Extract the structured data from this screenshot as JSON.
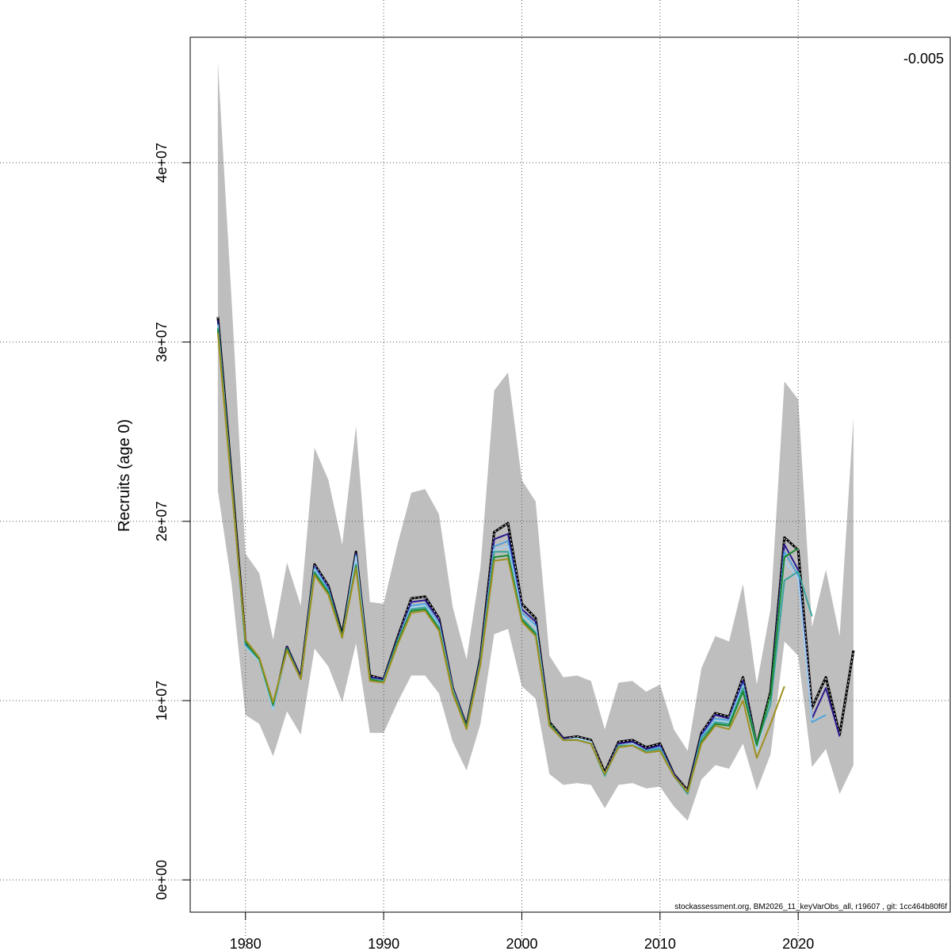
{
  "chart_data": {
    "type": "line",
    "title": "",
    "ylabel": "Recruits (age 0)",
    "xlabel": "",
    "xlim": [
      1976,
      2031
    ],
    "ylim": [
      -1800000,
      47000000
    ],
    "x_ticks": [
      1980,
      1990,
      2000,
      2010,
      2020
    ],
    "x_tick_labels": [
      "1980",
      "1990",
      "2000",
      "2010",
      "2020"
    ],
    "y_ticks": [
      0,
      10000000,
      20000000,
      30000000,
      40000000
    ],
    "y_tick_labels": [
      "0e+00",
      "1e+07",
      "2e+07",
      "3e+07",
      "4e+07"
    ],
    "grid": true,
    "annotation": "-0.005",
    "footer": "stockassessment.org, BM2026_11_keyVarObs_all, r19607 , git: 1cc464b80f6f",
    "band": {
      "color": "#bebebe",
      "x": [
        1978,
        1979,
        1980,
        1981,
        1982,
        1983,
        1984,
        1985,
        1986,
        1987,
        1988,
        1989,
        1990,
        1991,
        1992,
        1993,
        1994,
        1995,
        1996,
        1997,
        1998,
        1999,
        2000,
        2001,
        2002,
        2003,
        2004,
        2005,
        2006,
        2007,
        2008,
        2009,
        2010,
        2011,
        2012,
        2013,
        2014,
        2015,
        2016,
        2017,
        2018,
        2019,
        2020,
        2021,
        2022,
        2023,
        2024
      ],
      "upper": [
        45600000,
        32300000,
        18200000,
        17100000,
        13400000,
        17700000,
        15300000,
        24100000,
        22300000,
        18700000,
        25300000,
        15500000,
        15400000,
        18700000,
        21600000,
        21800000,
        20400000,
        15200000,
        12300000,
        17400000,
        27300000,
        28300000,
        22300000,
        21100000,
        12500000,
        11300000,
        11400000,
        11100000,
        8400000,
        11000000,
        11100000,
        10500000,
        10900000,
        8400000,
        7200000,
        11800000,
        13600000,
        13300000,
        16500000,
        10900000,
        15100000,
        27800000,
        26800000,
        14100000,
        17300000,
        13600000,
        25800000
      ],
      "lower": [
        21700000,
        16500000,
        9200000,
        8700000,
        6900000,
        9400000,
        8100000,
        12900000,
        11900000,
        9900000,
        13200000,
        8200000,
        8200000,
        9900000,
        11400000,
        11400000,
        10400000,
        7700000,
        6100000,
        8700000,
        13700000,
        14000000,
        10800000,
        10100000,
        5900000,
        5300000,
        5400000,
        5300000,
        4000000,
        5300000,
        5400000,
        5100000,
        5200000,
        4100000,
        3300000,
        5600000,
        6400000,
        6200000,
        7600000,
        5000000,
        7000000,
        13300000,
        12500000,
        6300000,
        7300000,
        4800000,
        6400000
      ]
    },
    "series": [
      {
        "color": "#000000",
        "dashed": true,
        "x": [
          1978,
          1979,
          1980,
          1981,
          1982,
          1983,
          1984,
          1985,
          1986,
          1987,
          1988,
          1989,
          1990,
          1991,
          1992,
          1993,
          1994,
          1995,
          1996,
          1997,
          1998,
          1999,
          2000,
          2001,
          2002,
          2003,
          2004,
          2005,
          2006,
          2007,
          2008,
          2009,
          2010,
          2011,
          2012,
          2013,
          2014,
          2015,
          2016,
          2017,
          2018,
          2019,
          2020,
          2021,
          2022,
          2023,
          2024
        ],
        "y": [
          31400000,
          22500000,
          13300000,
          12300000,
          9600000,
          13000000,
          11300000,
          17600000,
          16400000,
          13700000,
          18300000,
          11400000,
          11200000,
          13500000,
          15700000,
          15800000,
          14600000,
          10700000,
          8600000,
          12400000,
          19400000,
          19900000,
          15400000,
          14600000,
          8800000,
          7900000,
          8000000,
          7800000,
          6000000,
          7700000,
          7800000,
          7400000,
          7600000,
          5900000,
          5000000,
          8200000,
          9300000,
          9100000,
          11300000,
          7500000,
          10500000,
          19100000,
          18400000,
          9600000,
          11300000,
          8100000,
          12800000
        ]
      },
      {
        "color": "#2a1a8e",
        "dashed": false,
        "x": [
          1978,
          1979,
          1980,
          1981,
          1982,
          1983,
          1984,
          1985,
          1986,
          1987,
          1988,
          1989,
          1990,
          1991,
          1992,
          1993,
          1994,
          1995,
          1996,
          1997,
          1998,
          1999,
          2000,
          2001,
          2002,
          2003,
          2004,
          2005,
          2006,
          2007,
          2008,
          2009,
          2010,
          2011,
          2012,
          2013,
          2014,
          2015,
          2016,
          2017,
          2018,
          2019,
          2020,
          2021,
          2022,
          2023
        ],
        "y": [
          31200000,
          22300000,
          13200000,
          12300000,
          9600000,
          13000000,
          11300000,
          17500000,
          16300000,
          13600000,
          18200000,
          11300000,
          11200000,
          13400000,
          15500000,
          15600000,
          14500000,
          10700000,
          8600000,
          12300000,
          19000000,
          19300000,
          15100000,
          14400000,
          8700000,
          7900000,
          7900000,
          7700000,
          5900000,
          7600000,
          7700000,
          7300000,
          7500000,
          5900000,
          4900000,
          8100000,
          9200000,
          9000000,
          11100000,
          7400000,
          10300000,
          18700000,
          17300000,
          9000000,
          10700000,
          8000000
        ]
      },
      {
        "color": "#4fa3dd",
        "dashed": false,
        "x": [
          1978,
          1979,
          1980,
          1981,
          1982,
          1983,
          1984,
          1985,
          1986,
          1987,
          1988,
          1989,
          1990,
          1991,
          1992,
          1993,
          1994,
          1995,
          1996,
          1997,
          1998,
          1999,
          2000,
          2001,
          2002,
          2003,
          2004,
          2005,
          2006,
          2007,
          2008,
          2009,
          2010,
          2011,
          2012,
          2013,
          2014,
          2015,
          2016,
          2017,
          2018,
          2019,
          2020,
          2021,
          2022
        ],
        "y": [
          31000000,
          22200000,
          13000000,
          12200000,
          9500000,
          12900000,
          11200000,
          17400000,
          16200000,
          13500000,
          18100000,
          11200000,
          11100000,
          13300000,
          15300000,
          15400000,
          14300000,
          10600000,
          8500000,
          12200000,
          18600000,
          18900000,
          14900000,
          14200000,
          8700000,
          7800000,
          7900000,
          7700000,
          5800000,
          7500000,
          7600000,
          7200000,
          7400000,
          5800000,
          4800000,
          8000000,
          9000000,
          8900000,
          10900000,
          7300000,
          10200000,
          18300000,
          17000000,
          8800000,
          9200000
        ]
      },
      {
        "color": "#a6cfe9",
        "dashed": false,
        "x": [
          1978,
          1979,
          1980,
          1981,
          1982,
          1983,
          1984,
          1985,
          1986,
          1987,
          1988,
          1989,
          1990,
          1991,
          1992,
          1993,
          1994,
          1995,
          1996,
          1997,
          1998,
          1999,
          2000,
          2001,
          2002,
          2003,
          2004,
          2005,
          2006,
          2007,
          2008,
          2009,
          2010,
          2011,
          2012,
          2013,
          2014,
          2015,
          2016,
          2017,
          2018,
          2019,
          2020,
          2021
        ],
        "y": [
          30900000,
          22100000,
          13000000,
          12200000,
          9500000,
          12900000,
          11200000,
          17300000,
          16100000,
          13500000,
          18000000,
          11200000,
          11100000,
          13300000,
          15200000,
          15300000,
          14200000,
          10600000,
          8500000,
          12200000,
          18400000,
          18600000,
          14800000,
          14100000,
          8600000,
          7800000,
          7900000,
          7700000,
          5800000,
          7500000,
          7600000,
          7200000,
          7300000,
          5800000,
          4800000,
          7900000,
          8900000,
          8800000,
          10800000,
          7200000,
          10100000,
          17800000,
          16800000,
          8900000
        ]
      },
      {
        "color": "#3aa39a",
        "dashed": false,
        "x": [
          1978,
          1979,
          1980,
          1981,
          1982,
          1983,
          1984,
          1985,
          1986,
          1987,
          1988,
          1989,
          1990,
          1991,
          1992,
          1993,
          1994,
          1995,
          1996,
          1997,
          1998,
          1999,
          2000,
          2001,
          2002,
          2003,
          2004,
          2005,
          2006,
          2007,
          2008,
          2009,
          2010,
          2011,
          2012,
          2013,
          2014,
          2015,
          2016,
          2017,
          2018,
          2019,
          2020,
          2021
        ],
        "y": [
          30800000,
          22100000,
          13100000,
          12300000,
          9700000,
          12900000,
          11200000,
          17200000,
          16100000,
          13500000,
          17600000,
          11200000,
          11100000,
          13300000,
          15100000,
          15200000,
          14100000,
          10500000,
          8500000,
          12100000,
          18300000,
          18300000,
          14600000,
          13800000,
          8600000,
          7800000,
          7800000,
          7600000,
          5800000,
          7500000,
          7500000,
          7200000,
          7300000,
          5800000,
          4800000,
          7900000,
          8800000,
          8700000,
          10700000,
          7600000,
          9800000,
          16700000,
          17200000,
          14700000
        ]
      },
      {
        "color": "#1c8a2f",
        "dashed": false,
        "x": [
          1978,
          1979,
          1980,
          1981,
          1982,
          1983,
          1984,
          1985,
          1986,
          1987,
          1988,
          1989,
          1990,
          1991,
          1992,
          1993,
          1994,
          1995,
          1996,
          1997,
          1998,
          1999,
          2000,
          2001,
          2002,
          2003,
          2004,
          2005,
          2006,
          2007,
          2008,
          2009,
          2010,
          2011,
          2012,
          2013,
          2014,
          2015,
          2016,
          2017,
          2018,
          2019,
          2020
        ],
        "y": [
          30700000,
          22000000,
          13300000,
          12300000,
          9800000,
          12900000,
          11200000,
          17100000,
          16000000,
          13600000,
          17500000,
          11200000,
          11000000,
          13200000,
          15000000,
          15100000,
          14000000,
          10500000,
          8500000,
          12100000,
          18000000,
          18100000,
          14500000,
          13700000,
          8700000,
          7800000,
          7800000,
          7600000,
          5900000,
          7400000,
          7500000,
          7100000,
          7200000,
          5800000,
          4900000,
          7700000,
          8700000,
          8600000,
          10500000,
          7500000,
          10300000,
          18000000,
          18500000
        ]
      },
      {
        "color": "#a09021",
        "dashed": false,
        "x": [
          1978,
          1979,
          1980,
          1981,
          1982,
          1983,
          1984,
          1985,
          1986,
          1987,
          1988,
          1989,
          1990,
          1991,
          1992,
          1993,
          1994,
          1995,
          1996,
          1997,
          1998,
          1999,
          2000,
          2001,
          2002,
          2003,
          2004,
          2005,
          2006,
          2007,
          2008,
          2009,
          2010,
          2011,
          2012,
          2013,
          2014,
          2015,
          2016,
          2017,
          2018,
          2019
        ],
        "y": [
          30500000,
          21900000,
          13400000,
          12400000,
          9900000,
          12800000,
          11200000,
          17000000,
          15900000,
          13500000,
          17400000,
          11100000,
          11000000,
          13100000,
          14900000,
          15000000,
          13900000,
          10400000,
          8400000,
          12000000,
          17800000,
          17900000,
          14400000,
          13600000,
          8600000,
          7800000,
          7800000,
          7600000,
          5900000,
          7400000,
          7500000,
          7100000,
          7200000,
          5800000,
          4900000,
          7600000,
          8600000,
          8400000,
          10000000,
          6800000,
          8700000,
          10800000
        ]
      }
    ]
  }
}
